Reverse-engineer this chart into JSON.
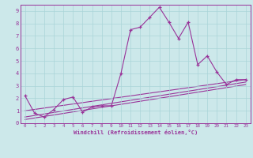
{
  "xlabel": "Windchill (Refroidissement éolien,°C)",
  "bg_color": "#cce8ea",
  "line_color": "#993399",
  "grid_color": "#aad4d8",
  "xlim": [
    -0.5,
    23.5
  ],
  "ylim": [
    0,
    9.5
  ],
  "xticks": [
    0,
    1,
    2,
    3,
    4,
    5,
    6,
    7,
    8,
    9,
    10,
    11,
    12,
    13,
    14,
    15,
    16,
    17,
    18,
    19,
    20,
    21,
    22,
    23
  ],
  "yticks": [
    0,
    1,
    2,
    3,
    4,
    5,
    6,
    7,
    8,
    9
  ],
  "main_series_x": [
    0,
    1,
    2,
    3,
    4,
    5,
    6,
    7,
    8,
    9,
    10,
    11,
    12,
    13,
    14,
    15,
    16,
    17,
    18,
    19,
    20,
    21,
    22,
    23
  ],
  "main_series_y": [
    2.2,
    0.8,
    0.5,
    1.1,
    1.9,
    2.1,
    0.9,
    1.3,
    1.4,
    1.4,
    4.0,
    7.5,
    7.7,
    8.5,
    9.3,
    8.1,
    6.8,
    8.1,
    4.7,
    5.4,
    4.1,
    3.1,
    3.5,
    3.5
  ],
  "trend1_x": [
    0,
    23
  ],
  "trend1_y": [
    1.0,
    3.5
  ],
  "trend2_x": [
    0,
    23
  ],
  "trend2_y": [
    0.5,
    3.3
  ],
  "trend3_x": [
    0,
    23
  ],
  "trend3_y": [
    0.3,
    3.1
  ]
}
